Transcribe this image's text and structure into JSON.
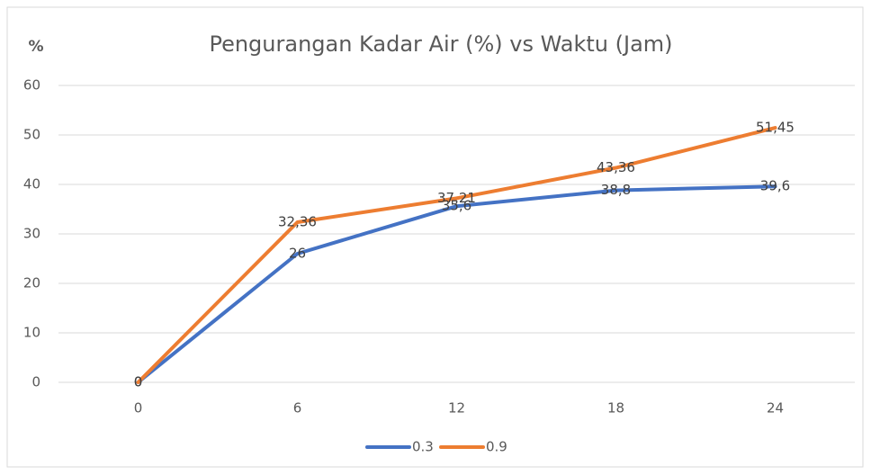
{
  "chart_data": {
    "type": "line",
    "title": "Pengurangan Kadar Air (%) vs Waktu (Jam)",
    "y_label": "%",
    "categories": [
      "0",
      "6",
      "12",
      "18",
      "24"
    ],
    "series": [
      {
        "name": "0.3",
        "color": "#4472c4",
        "values": [
          0,
          26,
          35.6,
          38.8,
          39.6
        ],
        "value_labels": [
          "0",
          "26",
          "35,6",
          "38,8",
          "39,6"
        ]
      },
      {
        "name": "0.9",
        "color": "#ed7d31",
        "values": [
          0,
          32.36,
          37.21,
          43.36,
          51.45
        ],
        "value_labels": [
          "0",
          "32,36",
          "37,21",
          "43,36",
          "51,45"
        ]
      }
    ],
    "ylim": [
      0,
      60
    ],
    "yticks": [
      0,
      10,
      20,
      30,
      40,
      50,
      60
    ],
    "grid": true,
    "legend": "bottom"
  }
}
